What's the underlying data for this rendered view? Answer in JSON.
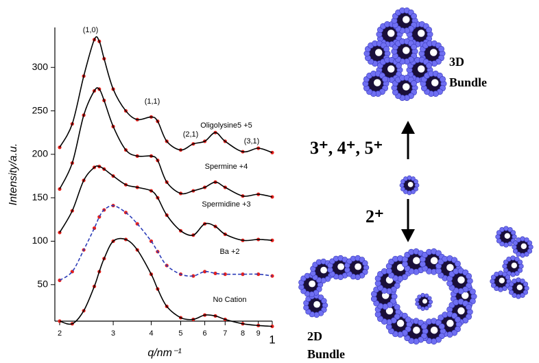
{
  "chart_data": {
    "type": "line",
    "x_label": "q/nm⁻¹",
    "y_label": "Intensity/a.u.",
    "x": [
      2,
      2.2,
      2.4,
      2.6,
      2.7,
      2.8,
      3,
      3.3,
      3.6,
      4,
      4.2,
      4.5,
      5,
      5.5,
      6,
      6.5,
      7,
      8,
      9,
      10
    ],
    "series": [
      {
        "name": "Oligolysine5 +5",
        "color": "#e8201c",
        "fit_color": "#000000",
        "values": [
          208,
          235,
          290,
          332,
          330,
          310,
          275,
          250,
          240,
          243,
          238,
          215,
          205,
          212,
          215,
          225,
          215,
          203,
          207,
          202
        ]
      },
      {
        "name": "Spermine +4",
        "color": "#e8201c",
        "fit_color": "#000000",
        "values": [
          160,
          190,
          245,
          273,
          275,
          262,
          232,
          205,
          198,
          198,
          193,
          168,
          155,
          158,
          162,
          168,
          162,
          152,
          154,
          151
        ]
      },
      {
        "name": "Spermidine +3",
        "color": "#e8201c",
        "fit_color": "#000000",
        "values": [
          110,
          135,
          170,
          185,
          186,
          183,
          175,
          165,
          162,
          158,
          150,
          130,
          112,
          107,
          120,
          117,
          108,
          101,
          102,
          101
        ]
      },
      {
        "name": "Ba +2",
        "color": "#e8201c",
        "fit_color": "#2a3bb8",
        "values": [
          55,
          65,
          90,
          115,
          128,
          136,
          141,
          133,
          120,
          100,
          88,
          72,
          62,
          60,
          65,
          63,
          62,
          62,
          62,
          60
        ]
      },
      {
        "name": "No Cation",
        "color": "#e8201c",
        "fit_color": "#000000",
        "values": [
          8,
          5,
          20,
          48,
          65,
          80,
          100,
          102,
          90,
          62,
          45,
          25,
          12,
          10,
          15,
          14,
          10,
          5,
          3,
          2
        ]
      }
    ],
    "annotations": [
      "(1,0)",
      "(1,1)",
      "(2,1)",
      "(3,1)"
    ],
    "log_x": true,
    "xlim": [
      2,
      10
    ],
    "xticks": [
      2,
      3,
      4,
      5,
      6,
      7,
      8,
      9,
      {
        "value": 10,
        "label": "1"
      }
    ],
    "ylim": [
      8,
      346
    ],
    "yticks": [
      50,
      100,
      150,
      200,
      250,
      300
    ]
  },
  "diagram": {
    "bundle_3d": [
      "3D",
      "Bundle"
    ],
    "charge_high": "3⁺, 4⁺, 5⁺",
    "charge_low": "2⁺",
    "bundle_2d": [
      "2D",
      "Bundle"
    ]
  }
}
